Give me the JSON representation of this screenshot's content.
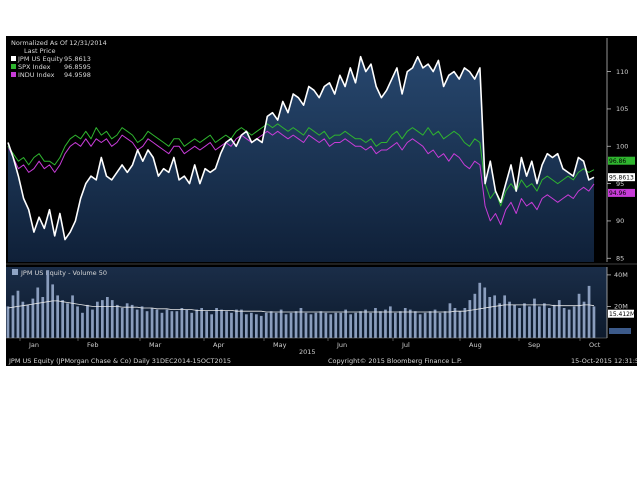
{
  "legend": {
    "header1": "Normalized As Of 12/31/2014",
    "header2": "Last Price",
    "entries": [
      {
        "name": "JPM US Equity",
        "value": "95.8613",
        "color": "#ffffff"
      },
      {
        "name": "SPX Index",
        "value": "96.8595",
        "color": "#2fb52f"
      },
      {
        "name": "INDU Index",
        "value": "94.9598",
        "color": "#c83cd8"
      }
    ]
  },
  "volume_legend": {
    "label": "JPM US Equity - Volume 50",
    "last_value": "15.412M"
  },
  "footer": {
    "left": "JPM US Equity (JPMorgan Chase & Co)  Daily 31DEC2014-15OCT2015",
    "center": "Copyright© 2015 Bloomberg Finance L.P.",
    "right": "15-Oct-2015 12:31:53",
    "year": "2015"
  },
  "chart_data": [
    {
      "type": "line",
      "title": "",
      "ylabel": "",
      "x_ticks": [
        "Jan",
        "Feb",
        "Mar",
        "Apr",
        "May",
        "Jun",
        "Jul",
        "Aug",
        "Sep",
        "Oct"
      ],
      "y_ticks": [
        85,
        90,
        95,
        100,
        105,
        110
      ],
      "ylim": [
        84.5,
        114.5
      ],
      "grid": false,
      "legend_position": "top-left",
      "series": [
        {
          "name": "JPM US Equity",
          "color": "#ffffff",
          "last": 95.8613,
          "last_label": "95.8613",
          "values": [
            100.5,
            98.5,
            96,
            93,
            91.5,
            88.5,
            90.5,
            89,
            91.5,
            88,
            91,
            87.5,
            88.5,
            90,
            93,
            95,
            96,
            95.5,
            98.5,
            96,
            95.5,
            96.5,
            97.5,
            96.5,
            97.5,
            99.5,
            98,
            99.5,
            98.5,
            96,
            97,
            96.5,
            98.5,
            95.5,
            96,
            95,
            97.5,
            95,
            97,
            96.5,
            97,
            99,
            100.5,
            101,
            100,
            101.5,
            102,
            100.5,
            101,
            100.5,
            104,
            104.5,
            103.5,
            106,
            104.5,
            107,
            106.5,
            105.5,
            108,
            107.5,
            106.5,
            108,
            108.5,
            107,
            109.5,
            108,
            110.5,
            108.5,
            112,
            110,
            111,
            108,
            106.5,
            107.5,
            109,
            110.5,
            107,
            110,
            110.5,
            112,
            110.5,
            111,
            110,
            111.5,
            108,
            109.5,
            110,
            109,
            110.5,
            110,
            109,
            110.5,
            95,
            98,
            94,
            92.5,
            95,
            97.5,
            94,
            98.5,
            96,
            98,
            95,
            97.5,
            99,
            98.5,
            99,
            97,
            96.5,
            96,
            98.5,
            98,
            95.5,
            95.8613
          ]
        },
        {
          "name": "SPX Index",
          "color": "#2fb52f",
          "last": 96.8595,
          "last_label": "96.86",
          "values": [
            100,
            99,
            98,
            98.5,
            97.5,
            98.5,
            99,
            98,
            98,
            97.5,
            98.5,
            100,
            101,
            101.5,
            101,
            102,
            101,
            102.5,
            101.5,
            102,
            101,
            101.5,
            102.5,
            102,
            101.5,
            100.5,
            101,
            102,
            101.5,
            101,
            100.5,
            100,
            101,
            101,
            100,
            100.5,
            101,
            100.5,
            101,
            101.5,
            100.5,
            101,
            101.5,
            101,
            102,
            102.5,
            102,
            101.5,
            102,
            102.5,
            103,
            102.5,
            103,
            102.5,
            102,
            102.5,
            102,
            101.5,
            102.5,
            102,
            101.5,
            102,
            101,
            101.5,
            101.5,
            102,
            101.5,
            101,
            101,
            100.5,
            101,
            100,
            100.5,
            100.5,
            101.5,
            102,
            101,
            102,
            102.5,
            102,
            101.5,
            102.5,
            101.5,
            102,
            101,
            101.5,
            102,
            101.5,
            100.5,
            100,
            101,
            100.5,
            95,
            93,
            94,
            92,
            94,
            95,
            94,
            95.5,
            94.5,
            95,
            94,
            95.5,
            96,
            95.5,
            95,
            95.5,
            96,
            95.5,
            96.5,
            97,
            96.5,
            96.8595
          ]
        },
        {
          "name": "INDU Index",
          "color": "#c83cd8",
          "last": 94.9598,
          "last_label": "94.96",
          "values": [
            100,
            98.5,
            97,
            97.5,
            96.5,
            97,
            98,
            97,
            97.5,
            96.5,
            97.5,
            99,
            100,
            100.5,
            100,
            101,
            100,
            101,
            100.5,
            101,
            100,
            100.5,
            101.5,
            101,
            100.5,
            99.5,
            100,
            101,
            100.5,
            100,
            99.5,
            99,
            100,
            100,
            99,
            99.5,
            100,
            99.5,
            100,
            100.5,
            99.5,
            100,
            100.5,
            100,
            101,
            101.5,
            101,
            100.5,
            101,
            101.5,
            102,
            101.5,
            102,
            101.5,
            101,
            101.5,
            101,
            100.5,
            101.5,
            101,
            100.5,
            101,
            100,
            100.5,
            100.5,
            101,
            100.5,
            100,
            100,
            99.5,
            100,
            99,
            99.5,
            99.5,
            100,
            100.5,
            99.5,
            100.5,
            101,
            100.5,
            100,
            99,
            99.5,
            98.5,
            99,
            98,
            99,
            98.5,
            97.5,
            97,
            98,
            97.5,
            92,
            90,
            91,
            89.5,
            91.5,
            92.5,
            91,
            93,
            92,
            92.5,
            91.5,
            93,
            93.5,
            93,
            92.5,
            93,
            93.5,
            93,
            94,
            94.5,
            94,
            94.9598
          ]
        }
      ]
    },
    {
      "type": "bar",
      "title": "",
      "ylabel": "",
      "series_name": "Volume",
      "y_ticks": [
        "20M",
        "40M"
      ],
      "ylim": [
        0,
        45
      ],
      "last_value": 15.412,
      "values": [
        20,
        27,
        30,
        23,
        21,
        25,
        32,
        26,
        43,
        34,
        27,
        24,
        22,
        27,
        20,
        16,
        21,
        18,
        23,
        24,
        26,
        24,
        21,
        19,
        22,
        21,
        18,
        20,
        17,
        19,
        18,
        16,
        18,
        17,
        17,
        19,
        18,
        16,
        18,
        19,
        17,
        15,
        19,
        18,
        17,
        16,
        18,
        18,
        15,
        16,
        15,
        14,
        16,
        17,
        16,
        18,
        15,
        16,
        17,
        19,
        16,
        15,
        16,
        17,
        16,
        15,
        16,
        16,
        18,
        15,
        16,
        17,
        18,
        16,
        19,
        17,
        18,
        20,
        16,
        17,
        19,
        18,
        17,
        15,
        16,
        17,
        18,
        16,
        17,
        22,
        19,
        17,
        19,
        24,
        28,
        35,
        32,
        26,
        27,
        22,
        27,
        23,
        21,
        19,
        22,
        20,
        25,
        20,
        22,
        19,
        21,
        24,
        19,
        18,
        20,
        28,
        23,
        33,
        20
      ],
      "ma_values": [
        19,
        19.5,
        20,
        20.5,
        21,
        21.5,
        22,
        22.5,
        23,
        23.5,
        23.5,
        23,
        22.5,
        22,
        21.5,
        21,
        20.5,
        20,
        20,
        20,
        20,
        20,
        20,
        19.5,
        19.5,
        19.5,
        19.5,
        19,
        19,
        19,
        18.5,
        18.5,
        18.5,
        18,
        18,
        18,
        18,
        18,
        17.5,
        17.5,
        17.5,
        17.5,
        17.5,
        17.5,
        17.5,
        17.5,
        17,
        17,
        17,
        17,
        17,
        17,
        16.5,
        16.5,
        16.5,
        16.5,
        16.5,
        16.5,
        16.5,
        16.5,
        16.5,
        16.5,
        16.5,
        16.5,
        16.5,
        16.5,
        16.5,
        16.5,
        16.5,
        16.5,
        16.5,
        16.5,
        16.5,
        16.5,
        16.5,
        16.5,
        16.5,
        16.5,
        16.5,
        16.5,
        16.5,
        16.5,
        16.5,
        16.5,
        16.5,
        16.5,
        16.5,
        16.5,
        16.5,
        16.5,
        17,
        17,
        17,
        17.5,
        18,
        18.5,
        19,
        19.5,
        20,
        20.5,
        21,
        21,
        21,
        21,
        21,
        21,
        21,
        21,
        21,
        21,
        20.5,
        20.5,
        20.5,
        20.5,
        20.5,
        20.5,
        21,
        21,
        20.5
      ]
    }
  ]
}
